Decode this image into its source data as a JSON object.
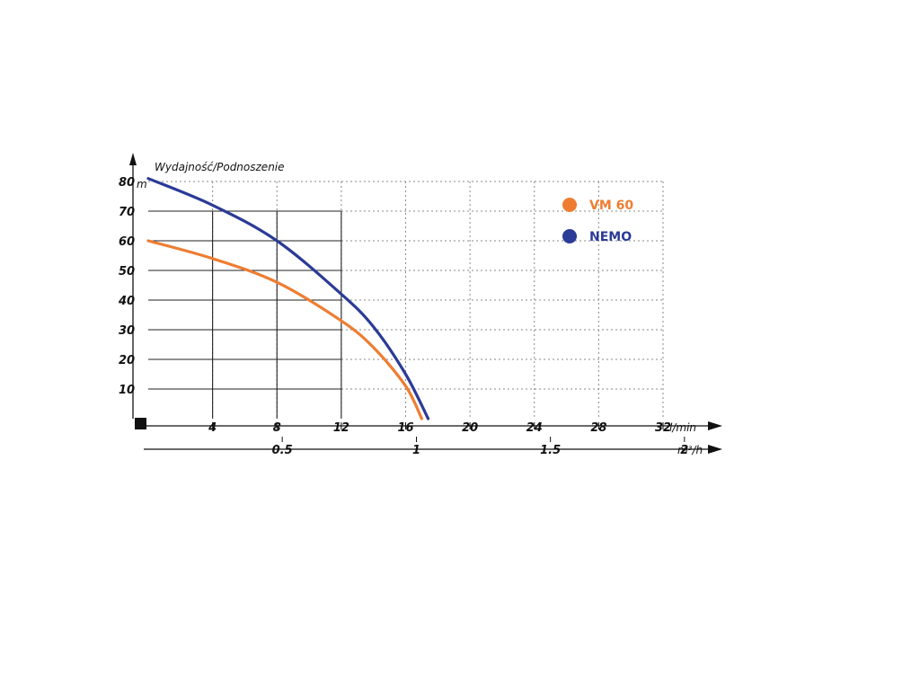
{
  "chart_data": {
    "type": "line",
    "title": "Wydajność/Podnoszenie",
    "y_unit": "m",
    "x_unit": "l/min",
    "x2_unit": "m³/h",
    "ylim": [
      0,
      80
    ],
    "xlim": [
      0,
      32
    ],
    "y_ticks": [
      "10",
      "20",
      "30",
      "40",
      "50",
      "60",
      "70",
      "80"
    ],
    "x_ticks": [
      "4",
      "8",
      "12",
      "16",
      "20",
      "24",
      "28",
      "32"
    ],
    "x2_ticks": [
      "0.5",
      "1",
      "1.5",
      "2"
    ],
    "x2_tick_positions": [
      8.33,
      16.67,
      25,
      33.33
    ],
    "grid": true,
    "legend_position": "top-right",
    "series": [
      {
        "name": "VM 60",
        "color": "#ee7d32",
        "x": [
          0,
          4,
          8,
          12,
          14,
          16,
          17
        ],
        "y": [
          60,
          54,
          46,
          33,
          24,
          11,
          0
        ]
      },
      {
        "name": "NEMO",
        "color": "#2b3b96",
        "x": [
          0,
          4,
          8,
          12,
          14,
          16,
          17.4
        ],
        "y": [
          81,
          72,
          60,
          42,
          31,
          15,
          0
        ]
      }
    ]
  }
}
